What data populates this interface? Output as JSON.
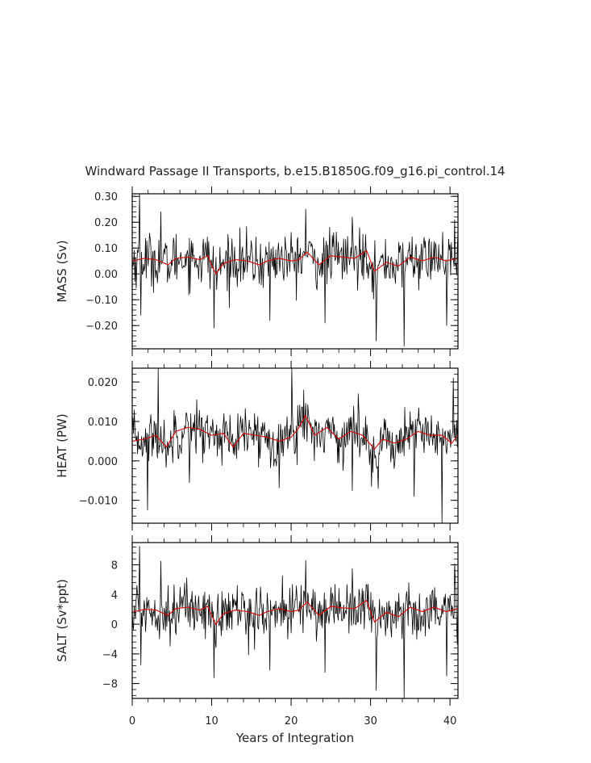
{
  "chart_data": {
    "type": "line",
    "title": "Windward Passage II Transports, b.e15.B1850G.f09_g16.pi_control.14",
    "xlabel": "Years of Integration",
    "xlim": [
      0,
      41
    ],
    "xticks": [
      0,
      10,
      20,
      30,
      40
    ],
    "colors": {
      "annual": "#000000",
      "smoothed": "#dd0000"
    },
    "panels": [
      {
        "ylabel": "MASS (Sv)",
        "ylim": [
          -0.29,
          0.31
        ],
        "yticks": [
          -0.2,
          -0.1,
          0.0,
          0.1,
          0.2,
          0.3
        ],
        "ytick_labels": [
          "−0.20",
          "−0.10",
          "0.00",
          "0.10",
          "0.20",
          "0.30"
        ],
        "spikes": [
          [
            0.9,
            0.31
          ],
          [
            1.1,
            -0.16
          ],
          [
            3.6,
            0.24
          ],
          [
            10.3,
            -0.21
          ],
          [
            17.3,
            -0.18
          ],
          [
            21.8,
            0.25
          ],
          [
            24.3,
            -0.19
          ],
          [
            30.7,
            -0.26
          ],
          [
            34.2,
            -0.28
          ],
          [
            39.6,
            -0.2
          ],
          [
            27.7,
            0.22
          ]
        ],
        "smoothed": {
          "x": [
            0,
            1.5,
            3,
            4.5,
            5.5,
            7,
            8.5,
            9.5,
            10.5,
            11.5,
            13,
            14.5,
            16,
            17,
            18.5,
            20,
            21,
            22,
            23.5,
            25,
            26.5,
            28,
            29.5,
            30.5,
            32,
            33.5,
            35,
            36.5,
            38,
            39.5,
            41
          ],
          "y": [
            0.05,
            0.06,
            0.055,
            0.035,
            0.06,
            0.065,
            0.055,
            0.07,
            0.0,
            0.04,
            0.055,
            0.05,
            0.035,
            0.05,
            0.06,
            0.05,
            0.055,
            0.085,
            0.035,
            0.07,
            0.065,
            0.06,
            0.09,
            0.01,
            0.045,
            0.03,
            0.065,
            0.05,
            0.065,
            0.05,
            0.06
          ]
        }
      },
      {
        "ylabel": "HEAT (PW)",
        "ylim": [
          -0.0158,
          0.0235
        ],
        "yticks": [
          -0.01,
          0.0,
          0.01,
          0.02
        ],
        "ytick_labels": [
          "−0.010",
          "0.000",
          "0.010",
          "0.020"
        ],
        "spikes": [
          [
            1.9,
            -0.0125
          ],
          [
            3.3,
            0.0235
          ],
          [
            7.2,
            -0.0055
          ],
          [
            20.1,
            0.0235
          ],
          [
            21.6,
            0.018
          ],
          [
            27.7,
            -0.0075
          ],
          [
            35.5,
            -0.009
          ],
          [
            39.0,
            -0.0158
          ],
          [
            40.4,
            0.021
          ],
          [
            31.0,
            -0.007
          ]
        ],
        "smoothed": {
          "x": [
            0,
            1.5,
            3,
            4.3,
            5.5,
            7,
            8.5,
            10,
            11.5,
            12.7,
            14,
            15.5,
            17,
            18.5,
            20,
            21,
            21.8,
            23,
            24.5,
            26,
            27.5,
            29,
            30.5,
            31.5,
            33,
            34.5,
            36,
            37.5,
            39,
            40.2,
            41
          ],
          "y": [
            0.005,
            0.0055,
            0.0065,
            0.0035,
            0.0075,
            0.0085,
            0.008,
            0.0065,
            0.007,
            0.0035,
            0.007,
            0.0065,
            0.006,
            0.005,
            0.006,
            0.0085,
            0.0115,
            0.0065,
            0.0085,
            0.0055,
            0.0075,
            0.0065,
            0.003,
            0.0055,
            0.0045,
            0.0055,
            0.0075,
            0.0065,
            0.0065,
            0.0045,
            0.0065
          ]
        }
      },
      {
        "ylabel": "SALT (Sv*ppt)",
        "ylim": [
          -10,
          11
        ],
        "yticks": [
          -8,
          -4,
          0,
          4,
          8
        ],
        "ytick_labels": [
          "−8",
          "−4",
          "0",
          "4",
          "8"
        ],
        "spikes": [
          [
            0.9,
            10.5
          ],
          [
            1.1,
            -5.5
          ],
          [
            3.6,
            8.5
          ],
          [
            10.3,
            -7.2
          ],
          [
            17.3,
            -6.2
          ],
          [
            21.8,
            8.6
          ],
          [
            24.3,
            -6.5
          ],
          [
            30.7,
            -8.9
          ],
          [
            34.2,
            -10
          ],
          [
            39.6,
            -7
          ],
          [
            27.7,
            7.5
          ]
        ],
        "smoothed": {
          "x": [
            0,
            1.5,
            3,
            4.5,
            5.5,
            7,
            8.5,
            9.5,
            10.5,
            11.5,
            13,
            14.5,
            16,
            17,
            18.5,
            20,
            21,
            22,
            23.5,
            25,
            26.5,
            28,
            29.5,
            30.5,
            32,
            33.5,
            35,
            36.5,
            38,
            39.5,
            41
          ],
          "y": [
            1.6,
            2.0,
            1.9,
            1.2,
            2.1,
            2.3,
            1.9,
            2.4,
            0.0,
            1.4,
            1.9,
            1.7,
            1.2,
            1.7,
            2.1,
            1.7,
            1.9,
            3.0,
            1.2,
            2.4,
            2.2,
            2.1,
            3.2,
            0.3,
            1.6,
            1.0,
            2.3,
            1.7,
            2.3,
            1.7,
            2.1
          ]
        }
      }
    ]
  }
}
